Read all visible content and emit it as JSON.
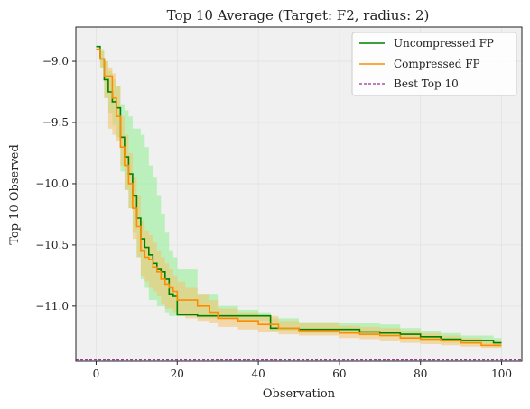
{
  "chart_data": {
    "type": "line",
    "title": "Top 10 Average (Target: F2, radius: 2)",
    "xlabel": "Observation",
    "ylabel": "Top 10 Observed",
    "xlim": [
      -5,
      105
    ],
    "ylim": [
      -11.45,
      -8.72
    ],
    "x_ticks": [
      0,
      20,
      40,
      60,
      80,
      100
    ],
    "y_ticks": [
      -11.0,
      -10.5,
      -10.0,
      -9.5,
      -9.0
    ],
    "x_tick_labels": [
      "0",
      "20",
      "40",
      "60",
      "80",
      "100"
    ],
    "y_tick_labels": [
      "−11.0",
      "−10.5",
      "−10.0",
      "−9.5",
      "−9.0"
    ],
    "grid": true,
    "legend_position": "top-right",
    "colors": {
      "uncompressed": "#008000",
      "uncompressed_band": "#90ee90",
      "compressed": "#ff8c00",
      "compressed_band": "#f5c26b",
      "best": "#800080",
      "plot_bg": "#f0f0f0",
      "grid": "#e2e2e2",
      "spine": "#222222"
    },
    "series": [
      {
        "name": "Uncompressed FP",
        "style": "solid",
        "x": [
          0,
          1,
          2,
          3,
          4,
          5,
          6,
          7,
          8,
          9,
          10,
          11,
          12,
          13,
          14,
          15,
          16,
          17,
          18,
          19,
          20,
          25,
          30,
          35,
          40,
          42,
          43,
          50,
          60,
          65,
          70,
          75,
          80,
          85,
          90,
          95,
          98,
          100
        ],
        "y": [
          -8.88,
          -8.98,
          -9.15,
          -9.25,
          -9.33,
          -9.38,
          -9.62,
          -9.78,
          -9.92,
          -10.1,
          -10.28,
          -10.45,
          -10.52,
          -10.58,
          -10.65,
          -10.7,
          -10.72,
          -10.78,
          -10.9,
          -10.92,
          -11.07,
          -11.08,
          -11.08,
          -11.08,
          -11.08,
          -11.08,
          -11.18,
          -11.19,
          -11.19,
          -11.21,
          -11.22,
          -11.23,
          -11.25,
          -11.27,
          -11.28,
          -11.28,
          -11.3,
          -11.3
        ],
        "lower": [
          -8.88,
          -9.05,
          -9.3,
          -9.42,
          -9.52,
          -9.62,
          -9.9,
          -10.05,
          -10.2,
          -10.4,
          -10.6,
          -10.78,
          -10.85,
          -10.95,
          -10.95,
          -11.0,
          -11.0,
          -11.05,
          -11.08,
          -11.08,
          -11.08,
          -11.1,
          -11.1,
          -11.12,
          -11.12,
          -11.12,
          -11.2,
          -11.22,
          -11.22,
          -11.24,
          -11.25,
          -11.26,
          -11.28,
          -11.3,
          -11.31,
          -11.31,
          -11.33,
          -11.33
        ],
        "upper": [
          -8.88,
          -8.9,
          -9.0,
          -9.08,
          -9.15,
          -9.2,
          -9.35,
          -9.4,
          -9.45,
          -9.55,
          -9.55,
          -9.6,
          -9.7,
          -9.85,
          -9.95,
          -10.1,
          -10.25,
          -10.4,
          -10.55,
          -10.6,
          -10.7,
          -10.9,
          -11.0,
          -11.03,
          -11.05,
          -11.05,
          -11.1,
          -11.13,
          -11.14,
          -11.14,
          -11.15,
          -11.18,
          -11.2,
          -11.22,
          -11.24,
          -11.24,
          -11.26,
          -11.26
        ]
      },
      {
        "name": "Compressed FP",
        "style": "solid",
        "x": [
          0,
          1,
          2,
          3,
          4,
          5,
          6,
          7,
          8,
          9,
          10,
          11,
          12,
          13,
          14,
          15,
          16,
          17,
          18,
          19,
          20,
          22,
          25,
          28,
          30,
          35,
          40,
          45,
          50,
          60,
          65,
          70,
          75,
          80,
          85,
          90,
          95,
          100
        ],
        "y": [
          -8.9,
          -8.98,
          -9.12,
          -9.12,
          -9.3,
          -9.45,
          -9.7,
          -9.85,
          -10.0,
          -10.2,
          -10.35,
          -10.55,
          -10.6,
          -10.62,
          -10.68,
          -10.72,
          -10.78,
          -10.82,
          -10.85,
          -10.88,
          -10.95,
          -10.95,
          -11.0,
          -11.05,
          -11.1,
          -11.12,
          -11.15,
          -11.18,
          -11.2,
          -11.22,
          -11.23,
          -11.24,
          -11.26,
          -11.27,
          -11.28,
          -11.3,
          -11.32,
          -11.32
        ],
        "lower": [
          -8.9,
          -9.05,
          -9.3,
          -9.55,
          -9.6,
          -9.65,
          -9.85,
          -10.05,
          -10.2,
          -10.45,
          -10.6,
          -10.75,
          -10.8,
          -10.85,
          -10.88,
          -10.92,
          -10.98,
          -11.02,
          -11.02,
          -11.05,
          -11.08,
          -11.1,
          -11.12,
          -11.14,
          -11.17,
          -11.19,
          -11.21,
          -11.23,
          -11.24,
          -11.26,
          -11.27,
          -11.28,
          -11.3,
          -11.31,
          -11.32,
          -11.33,
          -11.34,
          -11.34
        ],
        "upper": [
          -8.9,
          -8.92,
          -9.0,
          -9.05,
          -9.1,
          -9.2,
          -9.45,
          -9.6,
          -9.75,
          -9.95,
          -10.1,
          -10.3,
          -10.38,
          -10.42,
          -10.48,
          -10.55,
          -10.6,
          -10.65,
          -10.7,
          -10.75,
          -10.8,
          -10.85,
          -10.9,
          -10.95,
          -11.02,
          -11.05,
          -11.08,
          -11.12,
          -11.14,
          -11.16,
          -11.17,
          -11.18,
          -11.2,
          -11.22,
          -11.24,
          -11.26,
          -11.28,
          -11.28
        ]
      },
      {
        "name": "Best Top 10",
        "style": "dashed",
        "y_const": -11.44
      }
    ]
  }
}
